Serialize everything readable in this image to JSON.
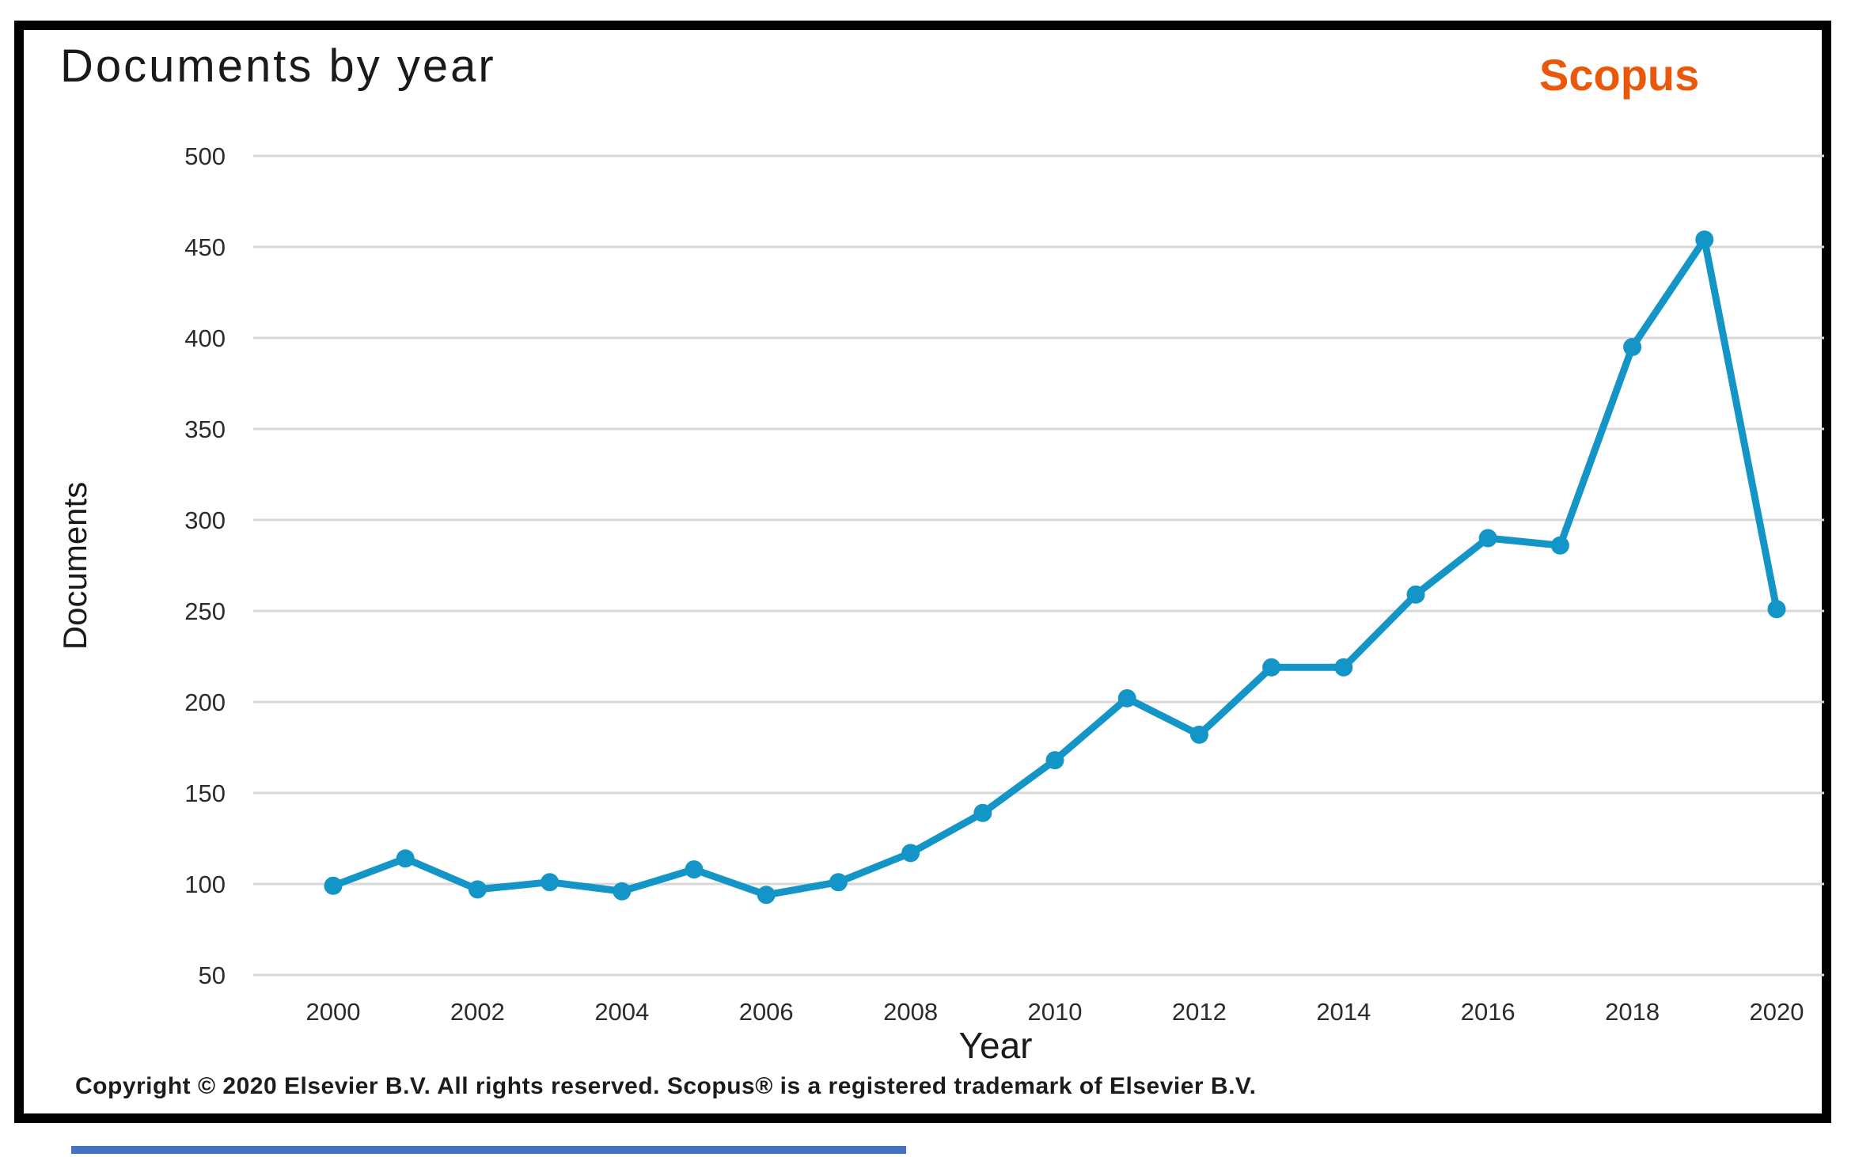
{
  "header": {
    "title": "Documents by year",
    "logo": "Scopus"
  },
  "axes": {
    "y_label": "Documents",
    "x_label": "Year",
    "y_ticks": [
      500,
      450,
      400,
      350,
      300,
      250,
      200,
      150,
      100,
      50
    ],
    "x_ticks": [
      2000,
      2002,
      2004,
      2006,
      2008,
      2010,
      2012,
      2014,
      2016,
      2018,
      2020
    ]
  },
  "footer": {
    "copyright": "Copyright © 2020 Elsevier B.V. All rights reserved. Scopus® is a registered trademark of Elsevier B.V."
  },
  "colors": {
    "line": "#1495c8",
    "logo_orange": "#ea580c",
    "grid": "#d8d8d8",
    "frame_border": "#000000",
    "bottom_bar_blue": "#4472c4"
  },
  "chart_data": {
    "type": "line",
    "title": "Documents by year",
    "xlabel": "Year",
    "ylabel": "Documents",
    "x": [
      2000,
      2001,
      2002,
      2003,
      2004,
      2005,
      2006,
      2007,
      2008,
      2009,
      2010,
      2011,
      2012,
      2013,
      2014,
      2015,
      2016,
      2017,
      2018,
      2019,
      2020
    ],
    "values": [
      99,
      114,
      97,
      101,
      96,
      108,
      94,
      101,
      117,
      139,
      168,
      202,
      182,
      219,
      219,
      259,
      290,
      286,
      395,
      454,
      251
    ],
    "ylim": [
      50,
      500
    ],
    "xtick_step": 2,
    "grid": true,
    "legend": false,
    "marker": "circle",
    "series_name": "Documents"
  }
}
